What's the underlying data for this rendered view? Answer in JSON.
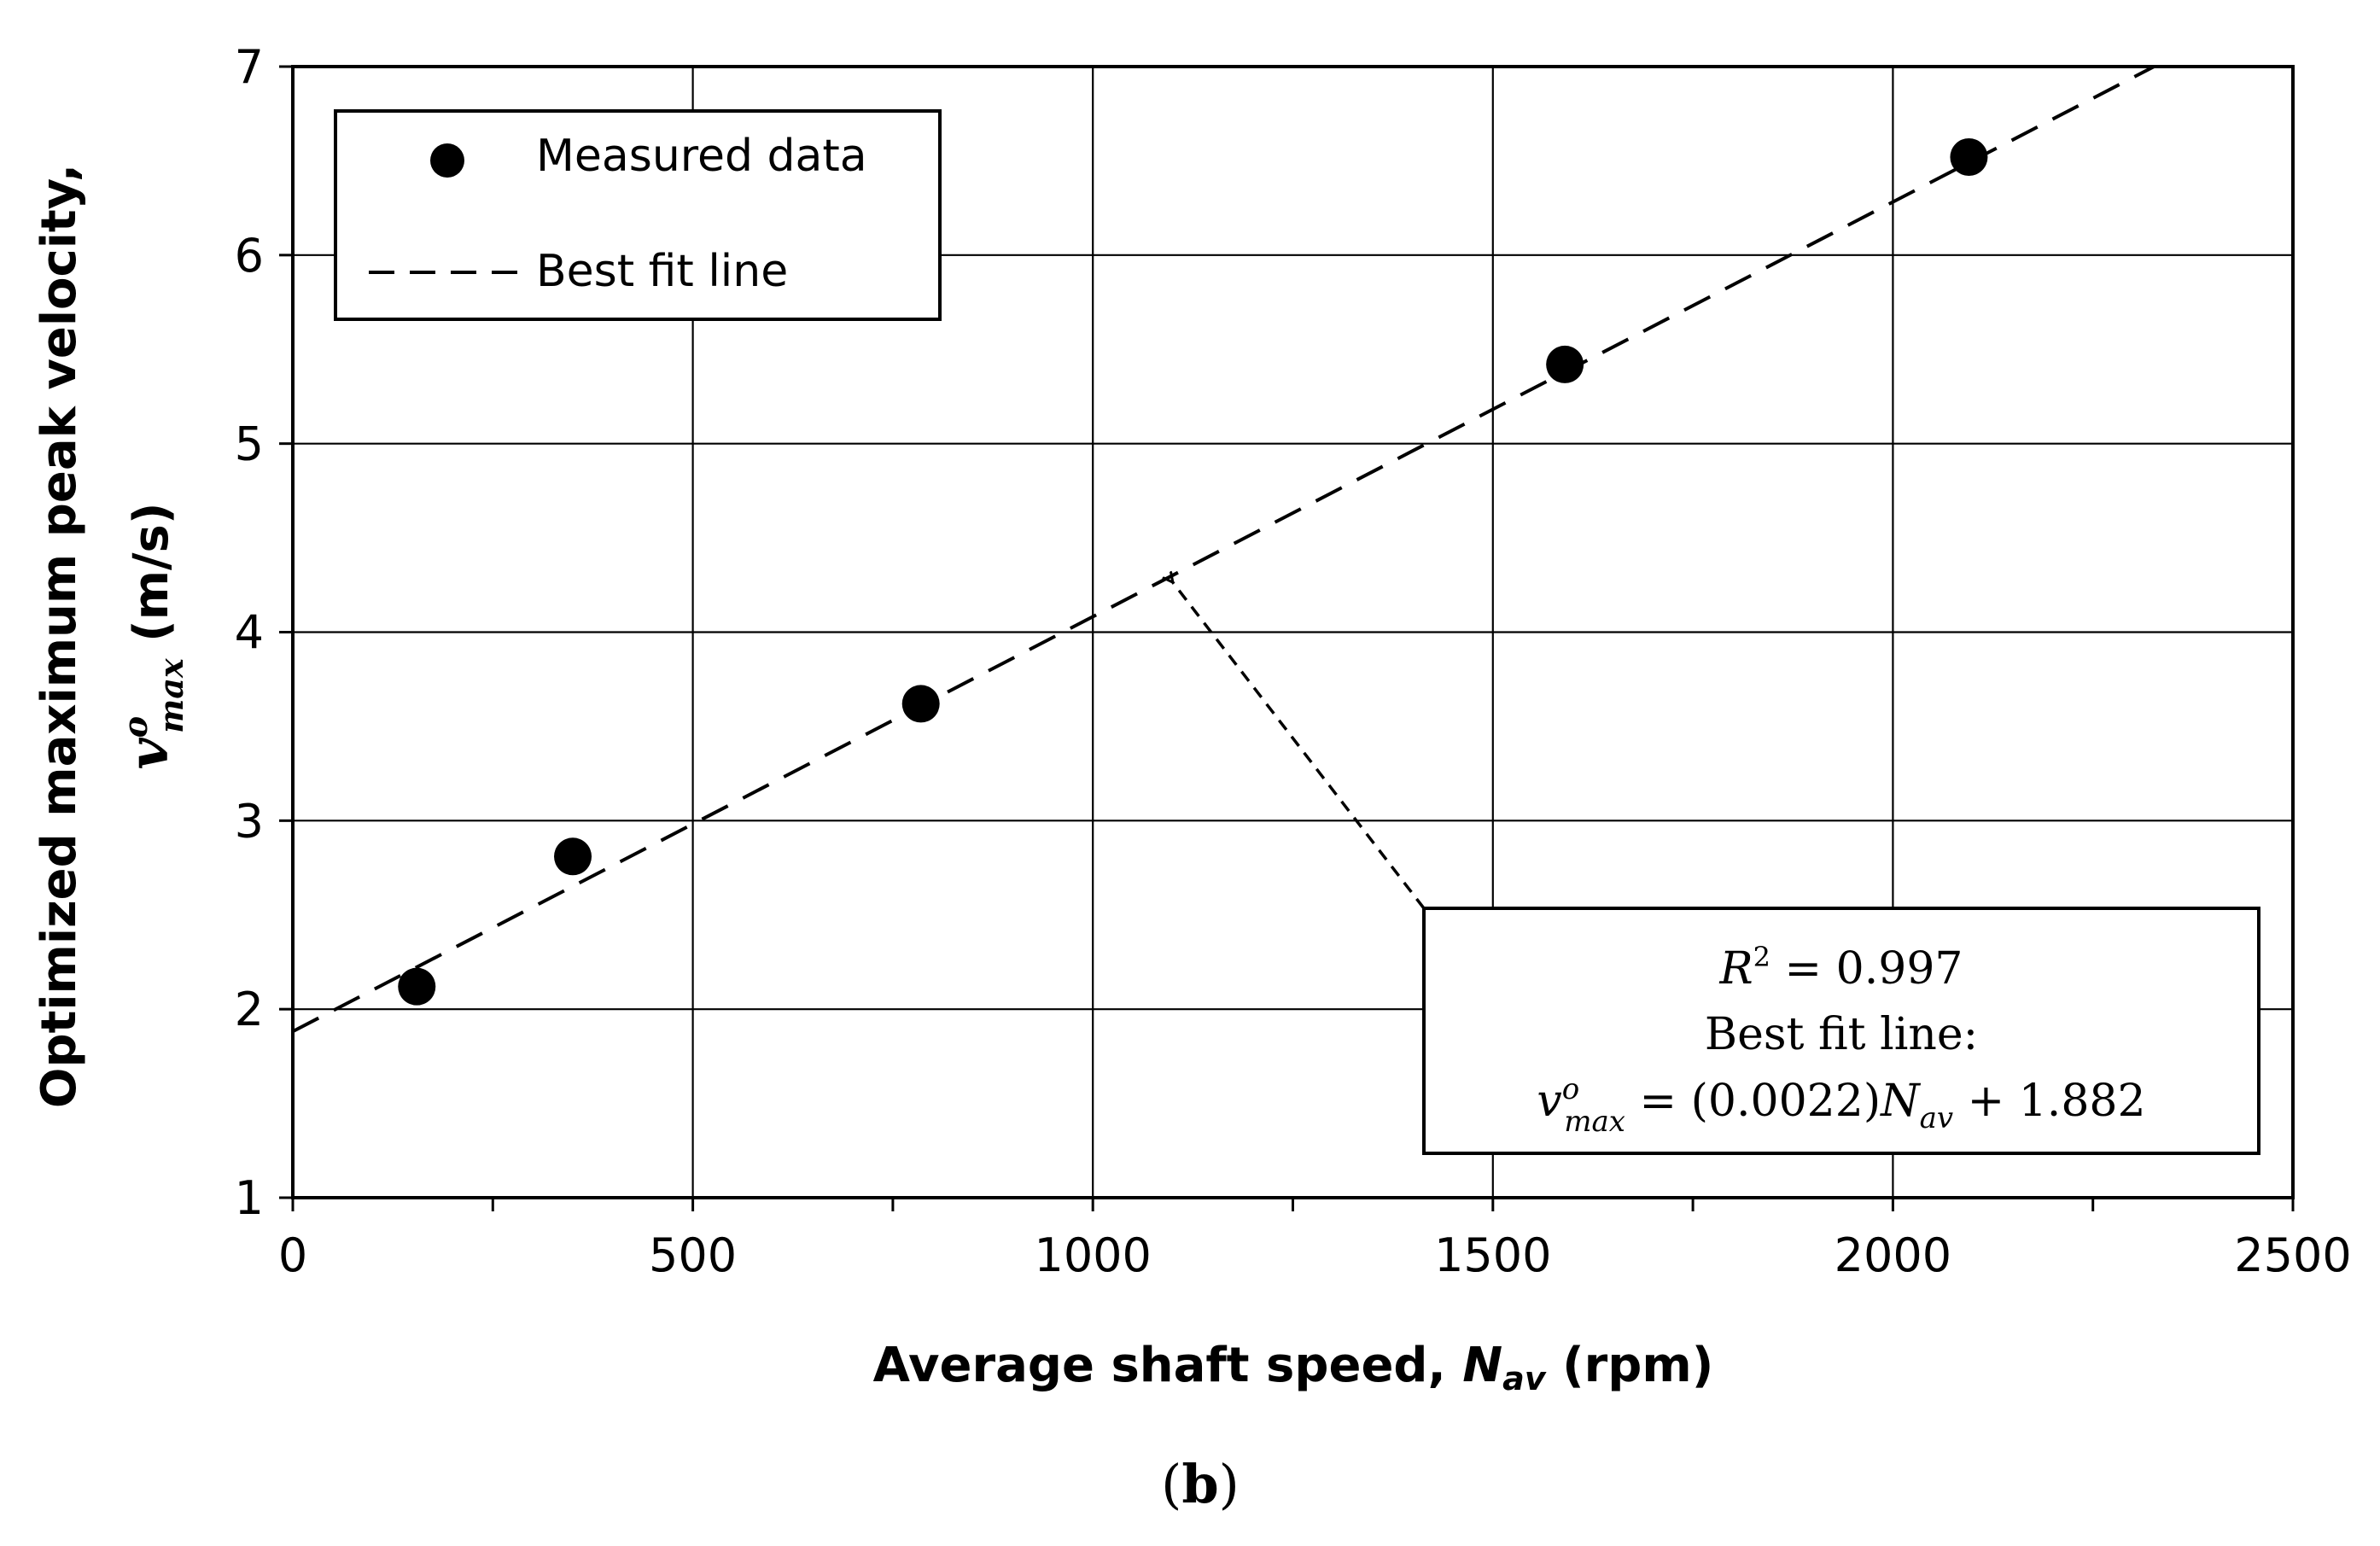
{
  "chart_data": {
    "type": "scatter",
    "title": "",
    "xlabel_main": "Average shaft speed, ",
    "xlabel_var": "N",
    "xlabel_sub": "av",
    "xlabel_unit": " (rpm)",
    "ylabel_line1": "Optimized maximum peak velocity,",
    "ylabel_var": "v",
    "ylabel_sup": "o",
    "ylabel_sub": "max",
    "ylabel_unit": " (m/s)",
    "xlim": [
      0,
      2500
    ],
    "ylim": [
      1,
      7
    ],
    "x_major_ticks": [
      0,
      500,
      1000,
      1500,
      2000,
      2500
    ],
    "x_minor_ticks": [
      250,
      750,
      1250,
      1750,
      2250
    ],
    "y_ticks": [
      1,
      2,
      3,
      4,
      5,
      6,
      7
    ],
    "x_tick_labels": [
      "0",
      "500",
      "1000",
      "1500",
      "2000",
      "2500"
    ],
    "y_tick_labels": [
      "1",
      "2",
      "3",
      "4",
      "5",
      "6",
      "7"
    ],
    "grid": true,
    "legend_position": "top-left",
    "series": [
      {
        "name": "Measured data",
        "kind": "markers",
        "x": [
          155,
          350,
          785,
          1590,
          2095
        ],
        "y": [
          2.12,
          2.81,
          3.62,
          5.42,
          6.52
        ]
      },
      {
        "name": "Best fit line",
        "kind": "dashed-line",
        "slope": 0.0022,
        "intercept": 1.882
      }
    ],
    "annotation": {
      "r2_label": "R",
      "r2_sup": "2",
      "r2_value": " = 0.997",
      "fit_label": "Best fit line:",
      "eq_lhs_var": "v",
      "eq_lhs_sup": "o",
      "eq_lhs_sub": "max",
      "eq_rhs": " = (0.0022)",
      "eq_rhs_var": "N",
      "eq_rhs_sub": "av",
      "eq_rhs_tail": " + 1.882",
      "arrow_target_x": 1100,
      "arrow_target_y": 4.3
    },
    "panel_label_open": "(",
    "panel_label_letter": "b",
    "panel_label_close": ")"
  }
}
